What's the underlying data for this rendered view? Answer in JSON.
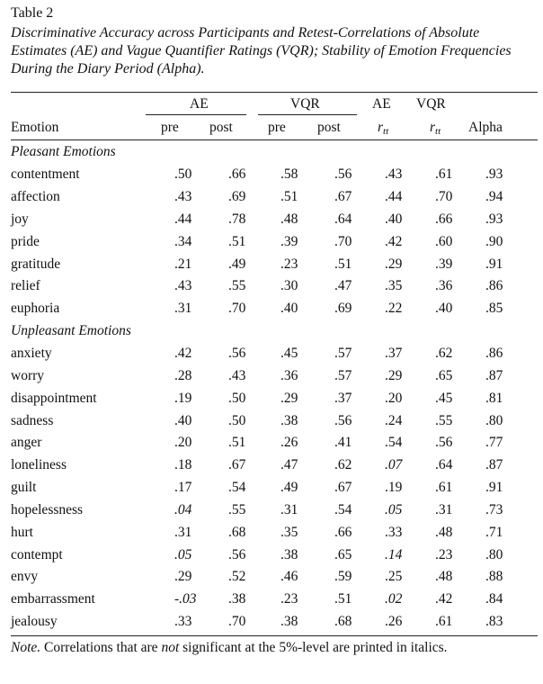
{
  "table_label": "Table 2",
  "caption": "Discriminative Accuracy across Participants and Retest-Correlations of Absolute Estimates (AE) and Vague Quantifier Ratings (VQR); Stability of Emotion Frequencies During the Diary Period (Alpha).",
  "header": {
    "group_ae": "AE",
    "group_vqr": "VQR",
    "rtt_ae": "AE",
    "rtt_vqr": "VQR",
    "emotion": "Emotion",
    "ae_pre": "pre",
    "ae_post": "post",
    "vqr_pre": "pre",
    "vqr_post": "post",
    "r_letter_ae": "r",
    "r_sub_ae": "tt",
    "r_letter_vqr": "r",
    "r_sub_vqr": "tt",
    "alpha": "Alpha"
  },
  "sections": [
    {
      "title": "Pleasant Emotions",
      "rows": [
        {
          "emotion": "contentment",
          "vals": [
            ".50",
            ".66",
            ".58",
            ".56",
            ".43",
            ".61",
            ".93"
          ],
          "italic": []
        },
        {
          "emotion": "affection",
          "vals": [
            ".43",
            ".69",
            ".51",
            ".67",
            ".44",
            ".70",
            ".94"
          ],
          "italic": []
        },
        {
          "emotion": "joy",
          "vals": [
            ".44",
            ".78",
            ".48",
            ".64",
            ".40",
            ".66",
            ".93"
          ],
          "italic": []
        },
        {
          "emotion": "pride",
          "vals": [
            ".34",
            ".51",
            ".39",
            ".70",
            ".42",
            ".60",
            ".90"
          ],
          "italic": []
        },
        {
          "emotion": "gratitude",
          "vals": [
            ".21",
            ".49",
            ".23",
            ".51",
            ".29",
            ".39",
            ".91"
          ],
          "italic": []
        },
        {
          "emotion": "relief",
          "vals": [
            ".43",
            ".55",
            ".30",
            ".47",
            ".35",
            ".36",
            ".86"
          ],
          "italic": []
        },
        {
          "emotion": "euphoria",
          "vals": [
            ".31",
            ".70",
            ".40",
            ".69",
            ".22",
            ".40",
            ".85"
          ],
          "italic": []
        }
      ]
    },
    {
      "title": "Unpleasant Emotions",
      "rows": [
        {
          "emotion": "anxiety",
          "vals": [
            ".42",
            ".56",
            ".45",
            ".57",
            ".37",
            ".62",
            ".86"
          ],
          "italic": []
        },
        {
          "emotion": "worry",
          "vals": [
            ".28",
            ".43",
            ".36",
            ".57",
            ".29",
            ".65",
            ".87"
          ],
          "italic": []
        },
        {
          "emotion": "disappointment",
          "vals": [
            ".19",
            ".50",
            ".29",
            ".37",
            ".20",
            ".45",
            ".81"
          ],
          "italic": []
        },
        {
          "emotion": "sadness",
          "vals": [
            ".40",
            ".50",
            ".38",
            ".56",
            ".24",
            ".55",
            ".80"
          ],
          "italic": []
        },
        {
          "emotion": "anger",
          "vals": [
            ".20",
            ".51",
            ".26",
            ".41",
            ".54",
            ".56",
            ".77"
          ],
          "italic": []
        },
        {
          "emotion": "loneliness",
          "vals": [
            ".18",
            ".67",
            ".47",
            ".62",
            ".07",
            ".64",
            ".87"
          ],
          "italic": [
            4
          ]
        },
        {
          "emotion": "guilt",
          "vals": [
            ".17",
            ".54",
            ".49",
            ".67",
            ".19",
            ".61",
            ".91"
          ],
          "italic": []
        },
        {
          "emotion": "hopelessness",
          "vals": [
            ".04",
            ".55",
            ".31",
            ".54",
            ".05",
            ".31",
            ".73"
          ],
          "italic": [
            0,
            4
          ]
        },
        {
          "emotion": "hurt",
          "vals": [
            ".31",
            ".68",
            ".35",
            ".66",
            ".33",
            ".48",
            ".71"
          ],
          "italic": []
        },
        {
          "emotion": "contempt",
          "vals": [
            ".05",
            ".56",
            ".38",
            ".65",
            ".14",
            ".23",
            ".80"
          ],
          "italic": [
            0,
            4
          ]
        },
        {
          "emotion": "envy",
          "vals": [
            ".29",
            ".52",
            ".46",
            ".59",
            ".25",
            ".48",
            ".88"
          ],
          "italic": []
        },
        {
          "emotion": "embarrassment",
          "vals": [
            "-.03",
            ".38",
            ".23",
            ".51",
            ".02",
            ".42",
            ".84"
          ],
          "italic": [
            0,
            4
          ]
        },
        {
          "emotion": "jealousy",
          "vals": [
            ".33",
            ".70",
            ".38",
            ".68",
            ".26",
            ".61",
            ".83"
          ],
          "italic": []
        }
      ]
    }
  ],
  "note": {
    "label": "Note.",
    "before": " Correlations that are ",
    "emph": "not",
    "after": " significant at the 5%-level are printed in italics."
  }
}
